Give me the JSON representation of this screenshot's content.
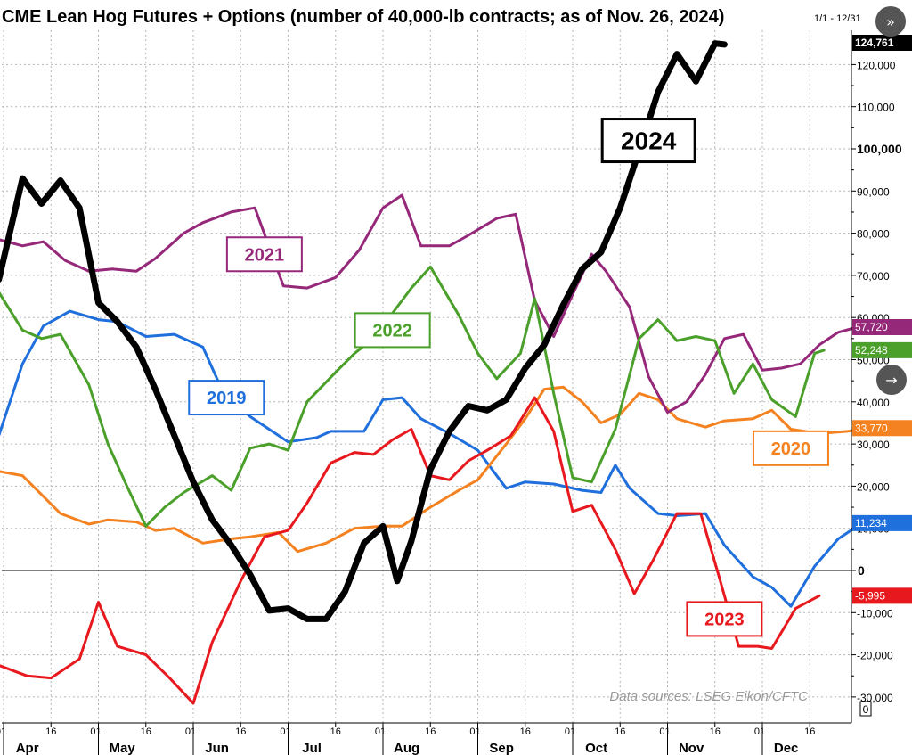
{
  "chart_data": {
    "type": "line",
    "title": "CME Lean Hog Futures + Options (number of 40,000-lb contracts; as of Nov. 26, 2024)",
    "date_range": "1/1 - 12/31",
    "source": "Data sources: LSEG Eikon/CFTC",
    "ylim": [
      -33000,
      127000
    ],
    "y_ticks": [
      {
        "v": 120000,
        "label": "120,000"
      },
      {
        "v": 110000,
        "label": "110,000"
      },
      {
        "v": 100000,
        "label": "100,000",
        "major": true
      },
      {
        "v": 90000,
        "label": "90,000"
      },
      {
        "v": 80000,
        "label": "80,000"
      },
      {
        "v": 70000,
        "label": "70,000"
      },
      {
        "v": 60000,
        "label": "60,000"
      },
      {
        "v": 50000,
        "label": "50,000"
      },
      {
        "v": 40000,
        "label": "40,000"
      },
      {
        "v": 30000,
        "label": "30,000"
      },
      {
        "v": 20000,
        "label": "20,000"
      },
      {
        "v": 10000,
        "label": "10,000"
      },
      {
        "v": 0,
        "label": "0",
        "major": true
      },
      {
        "v": -10000,
        "label": "-10,000"
      },
      {
        "v": -20000,
        "label": "-20,000"
      },
      {
        "v": -30000,
        "label": "-30,000"
      }
    ],
    "x_ticks": [
      {
        "x": 0,
        "label": "01"
      },
      {
        "x": 0.5,
        "label": "16"
      },
      {
        "x": 1,
        "label": "01"
      },
      {
        "x": 1.5,
        "label": "16"
      },
      {
        "x": 2,
        "label": "01"
      },
      {
        "x": 2.5,
        "label": "16"
      },
      {
        "x": 3,
        "label": "01"
      },
      {
        "x": 3.5,
        "label": "16"
      },
      {
        "x": 4,
        "label": "01"
      },
      {
        "x": 4.5,
        "label": "16"
      },
      {
        "x": 5,
        "label": "01"
      },
      {
        "x": 5.5,
        "label": "16"
      },
      {
        "x": 6,
        "label": "01"
      },
      {
        "x": 6.5,
        "label": "16"
      },
      {
        "x": 7,
        "label": "01"
      },
      {
        "x": 7.5,
        "label": "16"
      },
      {
        "x": 8,
        "label": "01"
      },
      {
        "x": 8.5,
        "label": "16"
      }
    ],
    "months": [
      {
        "x": 0.25,
        "label": "Apr"
      },
      {
        "x": 1.25,
        "label": "May"
      },
      {
        "x": 2.25,
        "label": "Jun"
      },
      {
        "x": 3.25,
        "label": "Jul"
      },
      {
        "x": 4.25,
        "label": "Aug"
      },
      {
        "x": 5.25,
        "label": "Sep"
      },
      {
        "x": 6.25,
        "label": "Oct"
      },
      {
        "x": 7.25,
        "label": "Nov"
      },
      {
        "x": 8.25,
        "label": "Dec"
      }
    ],
    "series": [
      {
        "name": "2019",
        "color": "#1f6fdc",
        "width": 3,
        "end_label": "11,234",
        "end_value": 11234,
        "label_pos": {
          "x": 2.35,
          "y": 41000
        },
        "points": [
          [
            -0.05,
            32000
          ],
          [
            0.2,
            49000
          ],
          [
            0.42,
            58000
          ],
          [
            0.7,
            61500
          ],
          [
            1.0,
            59500
          ],
          [
            1.2,
            59000
          ],
          [
            1.5,
            55500
          ],
          [
            1.8,
            56000
          ],
          [
            2.1,
            53000
          ],
          [
            2.3,
            43000
          ],
          [
            2.6,
            36500
          ],
          [
            3.0,
            30500
          ],
          [
            3.3,
            31500
          ],
          [
            3.45,
            33000
          ],
          [
            3.8,
            33000
          ],
          [
            4.0,
            40500
          ],
          [
            4.2,
            41000
          ],
          [
            4.4,
            36000
          ],
          [
            4.7,
            32500
          ],
          [
            5.0,
            28500
          ],
          [
            5.3,
            19500
          ],
          [
            5.5,
            21000
          ],
          [
            5.8,
            20500
          ],
          [
            6.1,
            19000
          ],
          [
            6.3,
            18500
          ],
          [
            6.45,
            25000
          ],
          [
            6.6,
            19500
          ],
          [
            6.9,
            13500
          ],
          [
            7.1,
            13000
          ],
          [
            7.4,
            13500
          ],
          [
            7.6,
            6000
          ],
          [
            7.9,
            -1500
          ],
          [
            8.1,
            -4000
          ],
          [
            8.3,
            -8500
          ],
          [
            8.55,
            1000
          ],
          [
            8.8,
            7500
          ],
          [
            9.05,
            11234
          ]
        ]
      },
      {
        "name": "2020",
        "color": "#f58220",
        "width": 3,
        "end_label": "33,770",
        "end_value": 33770,
        "label_pos": {
          "x": 8.3,
          "y": 29000
        },
        "points": [
          [
            -0.05,
            23500
          ],
          [
            0.2,
            22500
          ],
          [
            0.6,
            13500
          ],
          [
            0.9,
            11000
          ],
          [
            1.1,
            12000
          ],
          [
            1.4,
            11500
          ],
          [
            1.6,
            9500
          ],
          [
            1.8,
            10000
          ],
          [
            2.1,
            6500
          ],
          [
            2.4,
            7500
          ],
          [
            2.6,
            8000
          ],
          [
            2.9,
            9000
          ],
          [
            3.1,
            4500
          ],
          [
            3.4,
            6500
          ],
          [
            3.7,
            10000
          ],
          [
            4.0,
            10500
          ],
          [
            4.2,
            10500
          ],
          [
            4.5,
            15000
          ],
          [
            4.8,
            19000
          ],
          [
            5.0,
            21500
          ],
          [
            5.3,
            30000
          ],
          [
            5.5,
            36000
          ],
          [
            5.7,
            43000
          ],
          [
            5.9,
            43500
          ],
          [
            6.1,
            40000
          ],
          [
            6.3,
            35000
          ],
          [
            6.5,
            37000
          ],
          [
            6.7,
            42000
          ],
          [
            6.9,
            40500
          ],
          [
            7.1,
            36000
          ],
          [
            7.4,
            34000
          ],
          [
            7.6,
            35500
          ],
          [
            7.9,
            36000
          ],
          [
            8.1,
            38000
          ],
          [
            8.3,
            33500
          ],
          [
            8.6,
            32500
          ],
          [
            8.9,
            33000
          ],
          [
            9.1,
            33770
          ]
        ]
      },
      {
        "name": "2021",
        "color": "#96287a",
        "width": 3,
        "end_label": "57,720",
        "end_value": 57720,
        "label_pos": {
          "x": 2.75,
          "y": 75000
        },
        "points": [
          [
            -0.05,
            78500
          ],
          [
            0.2,
            77000
          ],
          [
            0.42,
            78000
          ],
          [
            0.65,
            73500
          ],
          [
            0.9,
            71000
          ],
          [
            1.15,
            71500
          ],
          [
            1.4,
            71000
          ],
          [
            1.6,
            74000
          ],
          [
            1.9,
            80000
          ],
          [
            2.1,
            82500
          ],
          [
            2.4,
            85000
          ],
          [
            2.65,
            86000
          ],
          [
            2.95,
            67500
          ],
          [
            3.2,
            67000
          ],
          [
            3.5,
            69500
          ],
          [
            3.75,
            76000
          ],
          [
            4.0,
            86000
          ],
          [
            4.2,
            89000
          ],
          [
            4.4,
            77000
          ],
          [
            4.7,
            77000
          ],
          [
            4.9,
            79500
          ],
          [
            5.2,
            83500
          ],
          [
            5.4,
            84500
          ],
          [
            5.6,
            64000
          ],
          [
            5.8,
            55500
          ],
          [
            6.0,
            65500
          ],
          [
            6.2,
            75000
          ],
          [
            6.35,
            71000
          ],
          [
            6.6,
            62500
          ],
          [
            6.8,
            46000
          ],
          [
            7.0,
            37500
          ],
          [
            7.2,
            40000
          ],
          [
            7.4,
            46500
          ],
          [
            7.6,
            55000
          ],
          [
            7.8,
            56000
          ],
          [
            8.0,
            47500
          ],
          [
            8.2,
            48000
          ],
          [
            8.4,
            49000
          ],
          [
            8.6,
            53500
          ],
          [
            8.8,
            56500
          ],
          [
            9.0,
            57720
          ]
        ]
      },
      {
        "name": "2022",
        "color": "#4aa02a",
        "width": 3,
        "end_label": "52,248",
        "end_value": 52248,
        "label_pos": {
          "x": 4.1,
          "y": 57000
        },
        "points": [
          [
            -0.05,
            66000
          ],
          [
            0.2,
            57000
          ],
          [
            0.4,
            55000
          ],
          [
            0.6,
            56000
          ],
          [
            0.9,
            44000
          ],
          [
            1.1,
            30000
          ],
          [
            1.3,
            20000
          ],
          [
            1.5,
            10500
          ],
          [
            1.7,
            15000
          ],
          [
            1.9,
            18500
          ],
          [
            2.2,
            22500
          ],
          [
            2.4,
            19000
          ],
          [
            2.6,
            29000
          ],
          [
            2.8,
            30000
          ],
          [
            3.0,
            28500
          ],
          [
            3.2,
            40000
          ],
          [
            3.5,
            47000
          ],
          [
            3.7,
            51500
          ],
          [
            3.9,
            55000
          ],
          [
            4.1,
            61000
          ],
          [
            4.3,
            67000
          ],
          [
            4.5,
            72000
          ],
          [
            4.8,
            60500
          ],
          [
            5.0,
            51500
          ],
          [
            5.2,
            45500
          ],
          [
            5.45,
            51500
          ],
          [
            5.6,
            64500
          ],
          [
            5.8,
            42000
          ],
          [
            6.0,
            22000
          ],
          [
            6.2,
            21000
          ],
          [
            6.45,
            33500
          ],
          [
            6.7,
            55000
          ],
          [
            6.9,
            59500
          ],
          [
            7.1,
            54500
          ],
          [
            7.3,
            55500
          ],
          [
            7.5,
            54500
          ],
          [
            7.7,
            42000
          ],
          [
            7.9,
            49000
          ],
          [
            8.1,
            40500
          ],
          [
            8.35,
            36500
          ],
          [
            8.55,
            51500
          ],
          [
            8.65,
            52248
          ]
        ]
      },
      {
        "name": "2023",
        "color": "#e8191e",
        "width": 3,
        "end_label": "-5,995",
        "end_value": -5995,
        "label_pos": {
          "x": 7.6,
          "y": -11500
        },
        "points": [
          [
            -0.05,
            -22500
          ],
          [
            0.25,
            -25000
          ],
          [
            0.5,
            -25500
          ],
          [
            0.8,
            -21000
          ],
          [
            1.0,
            -7500
          ],
          [
            1.2,
            -18000
          ],
          [
            1.5,
            -20000
          ],
          [
            1.75,
            -25500
          ],
          [
            2.0,
            -31500
          ],
          [
            2.2,
            -17000
          ],
          [
            2.5,
            -2500
          ],
          [
            2.75,
            8000
          ],
          [
            3.0,
            9500
          ],
          [
            3.2,
            16000
          ],
          [
            3.45,
            25500
          ],
          [
            3.7,
            28000
          ],
          [
            3.9,
            27500
          ],
          [
            4.1,
            31000
          ],
          [
            4.3,
            33500
          ],
          [
            4.5,
            22500
          ],
          [
            4.7,
            21500
          ],
          [
            4.9,
            26000
          ],
          [
            5.1,
            28500
          ],
          [
            5.35,
            32000
          ],
          [
            5.6,
            41000
          ],
          [
            5.8,
            33000
          ],
          [
            6.0,
            14000
          ],
          [
            6.2,
            15500
          ],
          [
            6.45,
            5000
          ],
          [
            6.65,
            -5500
          ],
          [
            6.85,
            2500
          ],
          [
            7.1,
            13500
          ],
          [
            7.35,
            13500
          ],
          [
            7.55,
            -2000
          ],
          [
            7.75,
            -18000
          ],
          [
            7.95,
            -18000
          ],
          [
            8.1,
            -18500
          ],
          [
            8.35,
            -9000
          ],
          [
            8.6,
            -5995
          ]
        ]
      },
      {
        "name": "2024",
        "color": "#000000",
        "width": 7,
        "end_label": "124,761",
        "end_value": 124761,
        "label_pos": {
          "x": 6.8,
          "y": 102000
        },
        "points": [
          [
            -0.05,
            69000
          ],
          [
            0.2,
            93000
          ],
          [
            0.4,
            87000
          ],
          [
            0.6,
            92500
          ],
          [
            0.8,
            86000
          ],
          [
            1.0,
            63500
          ],
          [
            1.2,
            59000
          ],
          [
            1.4,
            53000
          ],
          [
            1.6,
            43000
          ],
          [
            1.8,
            32000
          ],
          [
            2.0,
            21000
          ],
          [
            2.2,
            12000
          ],
          [
            2.4,
            6000
          ],
          [
            2.6,
            -1000
          ],
          [
            2.8,
            -9500
          ],
          [
            3.0,
            -9000
          ],
          [
            3.2,
            -11500
          ],
          [
            3.4,
            -11500
          ],
          [
            3.6,
            -5000
          ],
          [
            3.8,
            6500
          ],
          [
            4.0,
            10500
          ],
          [
            4.15,
            -2500
          ],
          [
            4.3,
            7000
          ],
          [
            4.5,
            24000
          ],
          [
            4.7,
            33000
          ],
          [
            4.9,
            39000
          ],
          [
            5.1,
            38000
          ],
          [
            5.3,
            40500
          ],
          [
            5.5,
            48000
          ],
          [
            5.7,
            53500
          ],
          [
            5.9,
            63000
          ],
          [
            6.1,
            71500
          ],
          [
            6.3,
            75500
          ],
          [
            6.5,
            86000
          ],
          [
            6.7,
            99500
          ],
          [
            6.9,
            113500
          ],
          [
            7.1,
            122500
          ],
          [
            7.3,
            116000
          ],
          [
            7.5,
            125000
          ],
          [
            7.6,
            124761
          ]
        ]
      }
    ]
  },
  "ui": {
    "nav_next_icon": "double-chevron-right-icon",
    "nav_arrow_icon": "arrow-right-icon",
    "zoom_box_glyph": "0"
  }
}
